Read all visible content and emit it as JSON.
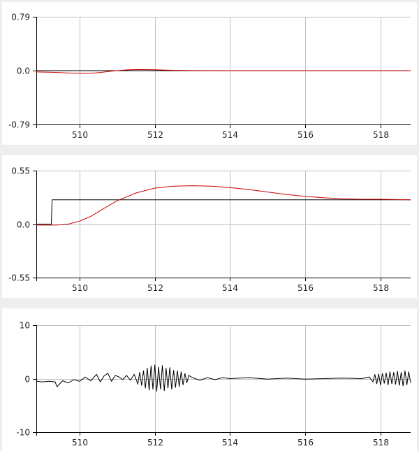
{
  "chart_data": [
    {
      "type": "line",
      "title": "",
      "xlabel": "",
      "ylabel": "",
      "xlim": [
        508.85,
        518.8
      ],
      "ylim": [
        -0.79,
        0.79
      ],
      "x_ticks": [
        510,
        512,
        514,
        516,
        518
      ],
      "x_tick_labels": [
        "510",
        "512",
        "514",
        "516",
        "518"
      ],
      "y_ticks": [
        0.79,
        0.0,
        -0.79
      ],
      "y_tick_labels": [
        "0.79",
        "0.0",
        "-0.79"
      ],
      "grid": true,
      "legend": "none",
      "series": [
        {
          "color": "#000000",
          "x": [
            508.85,
            518.8
          ],
          "y": [
            0.0,
            0.0
          ]
        },
        {
          "color": "#cc0000",
          "x": [
            508.85,
            509.3,
            509.7,
            510.0,
            510.3,
            510.6,
            510.8,
            511.0,
            511.3,
            511.6,
            512.0,
            512.5,
            513.0,
            514.0,
            516.0,
            518.0,
            518.8
          ],
          "y": [
            -0.02,
            -0.025,
            -0.035,
            -0.04,
            -0.038,
            -0.025,
            -0.01,
            0.0,
            0.012,
            0.016,
            0.012,
            0.004,
            0.001,
            0.0,
            0.0,
            0.0,
            0.0
          ]
        }
      ]
    },
    {
      "type": "line",
      "title": "",
      "xlabel": "",
      "ylabel": "",
      "xlim": [
        508.85,
        518.8
      ],
      "ylim": [
        -0.55,
        0.55
      ],
      "x_ticks": [
        510,
        512,
        514,
        516,
        518
      ],
      "x_tick_labels": [
        "510",
        "512",
        "514",
        "516",
        "518"
      ],
      "y_ticks": [
        0.55,
        0.0,
        -0.55
      ],
      "y_tick_labels": [
        "0.55",
        "0.0",
        "-0.55"
      ],
      "grid": true,
      "legend": "none",
      "series": [
        {
          "color": "#000000",
          "x": [
            508.85,
            509.25,
            509.27,
            518.8
          ],
          "y": [
            0.0,
            0.0,
            0.25,
            0.25
          ]
        },
        {
          "color": "#cc0000",
          "x": [
            508.85,
            509.4,
            509.7,
            510.0,
            510.3,
            510.6,
            511.0,
            511.5,
            512.0,
            512.5,
            513.0,
            513.5,
            514.0,
            514.5,
            515.0,
            515.5,
            516.0,
            516.5,
            517.0,
            517.5,
            518.0,
            518.8
          ],
          "y": [
            -0.01,
            -0.01,
            0.0,
            0.03,
            0.08,
            0.15,
            0.24,
            0.32,
            0.37,
            0.39,
            0.395,
            0.39,
            0.375,
            0.355,
            0.33,
            0.305,
            0.285,
            0.27,
            0.26,
            0.255,
            0.255,
            0.25
          ]
        }
      ]
    },
    {
      "type": "line",
      "title": "",
      "xlabel": "",
      "ylabel": "",
      "xlim": [
        508.85,
        518.8
      ],
      "ylim": [
        -10,
        10
      ],
      "x_ticks": [
        510,
        512,
        514,
        516,
        518
      ],
      "x_tick_labels": [
        "510",
        "512",
        "514",
        "516",
        "518"
      ],
      "y_ticks": [
        10,
        0,
        -10
      ],
      "y_tick_labels": [
        "10",
        "0",
        "-10"
      ],
      "grid": true,
      "legend": "none",
      "series": [
        {
          "color": "#000000",
          "x": [
            508.85,
            509.0,
            509.2,
            509.35,
            509.4,
            509.55,
            509.7,
            509.85,
            510.0,
            510.15,
            510.3,
            510.45,
            510.55,
            510.65,
            510.75,
            510.85,
            510.95,
            511.05,
            511.15,
            511.25,
            511.35,
            511.45,
            511.55,
            511.6,
            511.65,
            511.7,
            511.75,
            511.8,
            511.85,
            511.9,
            511.95,
            512.0,
            512.05,
            512.1,
            512.15,
            512.2,
            512.25,
            512.3,
            512.35,
            512.4,
            512.45,
            512.5,
            512.55,
            512.6,
            512.65,
            512.7,
            512.75,
            512.8,
            512.85,
            512.9,
            513.0,
            513.2,
            513.4,
            513.6,
            513.8,
            514.0,
            514.5,
            515.0,
            515.5,
            516.0,
            516.5,
            517.0,
            517.5,
            517.7,
            517.8,
            517.85,
            517.9,
            517.95,
            518.0,
            518.05,
            518.1,
            518.15,
            518.2,
            518.25,
            518.3,
            518.35,
            518.4,
            518.45,
            518.5,
            518.55,
            518.6,
            518.65,
            518.7,
            518.75,
            518.8
          ],
          "y": [
            -0.5,
            -0.6,
            -0.5,
            -0.6,
            -1.5,
            -0.4,
            -0.8,
            -0.2,
            -0.5,
            0.3,
            -0.4,
            0.8,
            -0.6,
            0.5,
            1.0,
            -0.5,
            0.6,
            0.3,
            -0.2,
            0.6,
            -0.3,
            0.8,
            -1.0,
            1.2,
            -1.3,
            1.5,
            -1.8,
            2.0,
            -2.2,
            2.4,
            -2.0,
            2.6,
            -2.4,
            2.2,
            -2.0,
            2.5,
            -2.3,
            2.0,
            -1.8,
            2.1,
            -2.0,
            1.6,
            -1.7,
            1.5,
            -1.5,
            1.3,
            -1.2,
            1.0,
            -0.8,
            0.6,
            0.2,
            -0.3,
            0.2,
            -0.2,
            0.2,
            0.0,
            0.2,
            -0.1,
            0.1,
            -0.1,
            0.0,
            0.1,
            0.0,
            0.3,
            -0.6,
            0.8,
            -1.0,
            0.9,
            -1.2,
            1.0,
            -0.9,
            1.1,
            -1.2,
            1.3,
            -1.0,
            1.2,
            -1.1,
            1.4,
            -1.3,
            1.2,
            -1.4,
            1.5,
            -1.2,
            1.3,
            -0.8
          ]
        }
      ]
    }
  ]
}
